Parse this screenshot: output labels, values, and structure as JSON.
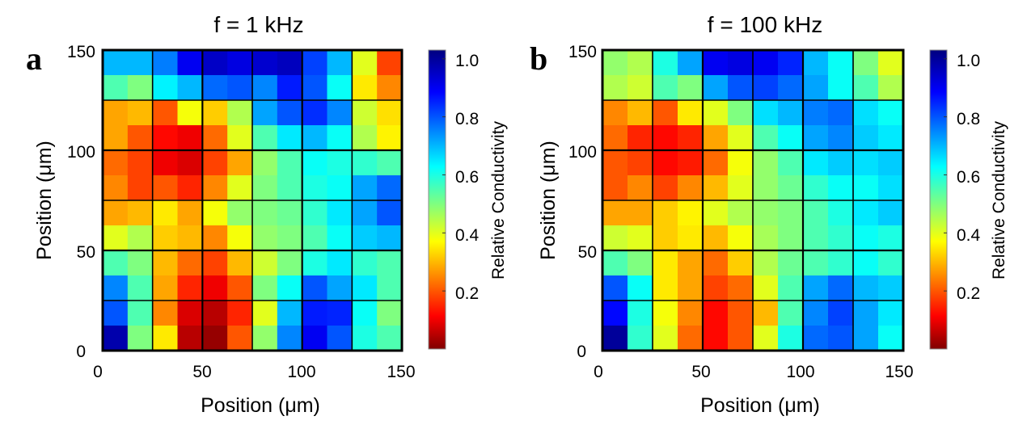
{
  "chart_data": [
    {
      "type": "heatmap",
      "panel_label": "a",
      "title": "f = 1 kHz",
      "xlabel": "Position (μm)",
      "ylabel": "Position (μm)",
      "xlim": [
        0,
        150
      ],
      "ylim": [
        0,
        150
      ],
      "xticks": [
        "0",
        "50",
        "100",
        "150"
      ],
      "yticks": [
        "0",
        "50",
        "100",
        "150"
      ],
      "grid": true,
      "grid_spacing": 25,
      "colorbar": {
        "label": "Relative Conductivity",
        "range": [
          0,
          1.03
        ],
        "ticks": [
          "0.2",
          "0.4",
          "0.6",
          "0.8",
          "1.0"
        ],
        "colormap": "jet"
      },
      "rows_top_to_bottom": [
        [
          0.7,
          0.7,
          0.76,
          0.9,
          0.95,
          0.92,
          0.94,
          0.96,
          0.82,
          0.7,
          0.4,
          0.18
        ],
        [
          0.55,
          0.5,
          0.64,
          0.7,
          0.78,
          0.8,
          0.75,
          0.86,
          0.8,
          0.62,
          0.35,
          0.25
        ],
        [
          0.28,
          0.3,
          0.2,
          0.38,
          0.32,
          0.45,
          0.72,
          0.8,
          0.84,
          0.75,
          0.42,
          0.34
        ],
        [
          0.28,
          0.2,
          0.12,
          0.1,
          0.22,
          0.4,
          0.55,
          0.65,
          0.7,
          0.62,
          0.45,
          0.36
        ],
        [
          0.22,
          0.18,
          0.1,
          0.08,
          0.18,
          0.28,
          0.48,
          0.55,
          0.62,
          0.6,
          0.58,
          0.55
        ],
        [
          0.25,
          0.18,
          0.2,
          0.15,
          0.25,
          0.4,
          0.5,
          0.55,
          0.6,
          0.62,
          0.72,
          0.78
        ],
        [
          0.28,
          0.3,
          0.35,
          0.28,
          0.38,
          0.48,
          0.5,
          0.52,
          0.58,
          0.65,
          0.72,
          0.8
        ],
        [
          0.4,
          0.45,
          0.32,
          0.3,
          0.25,
          0.38,
          0.48,
          0.5,
          0.55,
          0.62,
          0.68,
          0.7
        ],
        [
          0.55,
          0.5,
          0.3,
          0.22,
          0.18,
          0.3,
          0.42,
          0.5,
          0.6,
          0.65,
          0.58,
          0.55
        ],
        [
          0.75,
          0.55,
          0.28,
          0.15,
          0.1,
          0.2,
          0.5,
          0.62,
          0.8,
          0.72,
          0.65,
          0.55
        ],
        [
          0.8,
          0.55,
          0.25,
          0.08,
          0.05,
          0.15,
          0.4,
          0.7,
          0.86,
          0.85,
          0.62,
          0.5
        ],
        [
          0.98,
          0.5,
          0.35,
          0.05,
          0.02,
          0.2,
          0.48,
          0.75,
          0.9,
          0.8,
          0.6,
          0.55
        ]
      ]
    },
    {
      "type": "heatmap",
      "panel_label": "b",
      "title": "f = 100 kHz",
      "xlabel": "Position (μm)",
      "ylabel": "Position (μm)",
      "xlim": [
        0,
        150
      ],
      "ylim": [
        0,
        150
      ],
      "xticks": [
        "0",
        "50",
        "100",
        "150"
      ],
      "yticks": [
        "0",
        "50",
        "100",
        "150"
      ],
      "grid": true,
      "grid_spacing": 25,
      "colorbar": {
        "label": "Relative Conductivity",
        "range": [
          0,
          1.03
        ],
        "ticks": [
          "0.2",
          "0.4",
          "0.6",
          "0.8",
          "1.0"
        ],
        "colormap": "jet"
      },
      "rows_top_to_bottom": [
        [
          0.48,
          0.45,
          0.6,
          0.72,
          0.9,
          0.92,
          0.9,
          0.85,
          0.7,
          0.62,
          0.5,
          0.4
        ],
        [
          0.45,
          0.42,
          0.55,
          0.5,
          0.72,
          0.8,
          0.82,
          0.78,
          0.72,
          0.62,
          0.55,
          0.45
        ],
        [
          0.25,
          0.3,
          0.2,
          0.35,
          0.4,
          0.5,
          0.66,
          0.7,
          0.76,
          0.78,
          0.66,
          0.62
        ],
        [
          0.22,
          0.15,
          0.12,
          0.15,
          0.28,
          0.4,
          0.55,
          0.62,
          0.72,
          0.75,
          0.68,
          0.65
        ],
        [
          0.2,
          0.18,
          0.12,
          0.14,
          0.22,
          0.38,
          0.48,
          0.55,
          0.65,
          0.68,
          0.66,
          0.68
        ],
        [
          0.2,
          0.25,
          0.18,
          0.25,
          0.3,
          0.4,
          0.48,
          0.52,
          0.58,
          0.62,
          0.62,
          0.66
        ],
        [
          0.28,
          0.28,
          0.32,
          0.36,
          0.4,
          0.45,
          0.48,
          0.5,
          0.55,
          0.6,
          0.65,
          0.68
        ],
        [
          0.42,
          0.4,
          0.32,
          0.35,
          0.3,
          0.38,
          0.46,
          0.5,
          0.55,
          0.58,
          0.62,
          0.6
        ],
        [
          0.55,
          0.5,
          0.35,
          0.28,
          0.22,
          0.32,
          0.45,
          0.52,
          0.55,
          0.58,
          0.62,
          0.58
        ],
        [
          0.8,
          0.62,
          0.35,
          0.28,
          0.18,
          0.22,
          0.4,
          0.55,
          0.72,
          0.78,
          0.7,
          0.68
        ],
        [
          0.88,
          0.6,
          0.38,
          0.25,
          0.12,
          0.2,
          0.3,
          0.55,
          0.75,
          0.82,
          0.72,
          0.65
        ],
        [
          1.0,
          0.58,
          0.4,
          0.22,
          0.12,
          0.2,
          0.4,
          0.6,
          0.78,
          0.8,
          0.72,
          0.62
        ]
      ]
    }
  ]
}
